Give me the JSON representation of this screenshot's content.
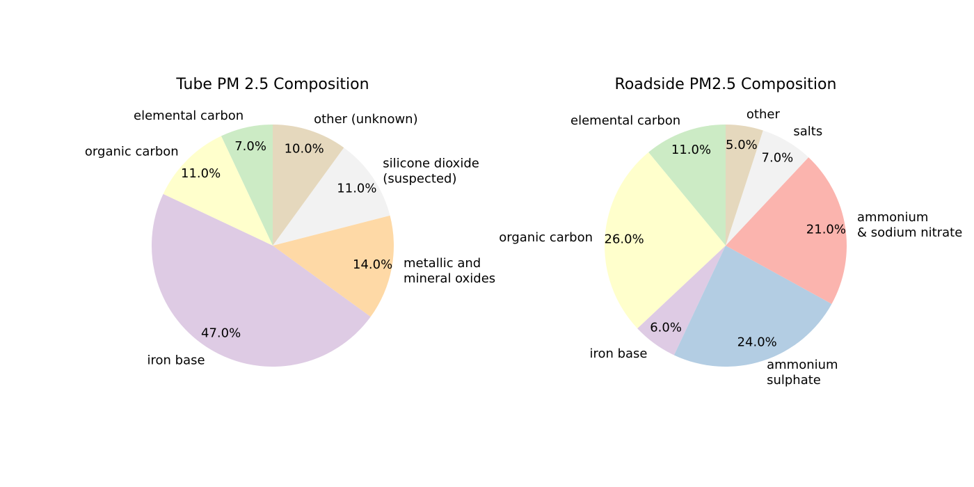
{
  "chart_data": [
    {
      "type": "pie",
      "title": "Tube PM 2.5 Composition",
      "start_angle_deg": 90,
      "direction": "counterclockwise",
      "slices": [
        {
          "label": "elemental carbon",
          "value": 7.0,
          "pct_text": "7.0%",
          "color": "#ccebc5"
        },
        {
          "label": "organic carbon",
          "value": 11.0,
          "pct_text": "11.0%",
          "color": "#ffffcc"
        },
        {
          "label": "iron base",
          "value": 47.0,
          "pct_text": "47.0%",
          "color": "#decbe4"
        },
        {
          "label": "metallic and\nmineral oxides",
          "value": 14.0,
          "pct_text": "14.0%",
          "color": "#fed9a6"
        },
        {
          "label": "silicone dioxide\n(suspected)",
          "value": 11.0,
          "pct_text": "11.0%",
          "color": "#f2f2f2"
        },
        {
          "label": "other (unknown)",
          "value": 10.0,
          "pct_text": "10.0%",
          "color": "#e5d8bd"
        }
      ]
    },
    {
      "type": "pie",
      "title": "Roadside PM2.5 Composition",
      "start_angle_deg": 90,
      "direction": "counterclockwise",
      "slices": [
        {
          "label": "elemental carbon",
          "value": 11.0,
          "pct_text": "11.0%",
          "color": "#ccebc5"
        },
        {
          "label": "organic carbon",
          "value": 26.0,
          "pct_text": "26.0%",
          "color": "#ffffcc"
        },
        {
          "label": "iron base",
          "value": 6.0,
          "pct_text": "6.0%",
          "color": "#decbe4"
        },
        {
          "label": "ammonium\nsulphate",
          "value": 24.0,
          "pct_text": "24.0%",
          "color": "#b3cde3"
        },
        {
          "label": "ammonium\n& sodium nitrate",
          "value": 21.0,
          "pct_text": "21.0%",
          "color": "#fbb4ae"
        },
        {
          "label": "salts",
          "value": 7.0,
          "pct_text": "7.0%",
          "color": "#f2f2f2"
        },
        {
          "label": "other",
          "value": 5.0,
          "pct_text": "5.0%",
          "color": "#e5d8bd"
        }
      ]
    }
  ]
}
